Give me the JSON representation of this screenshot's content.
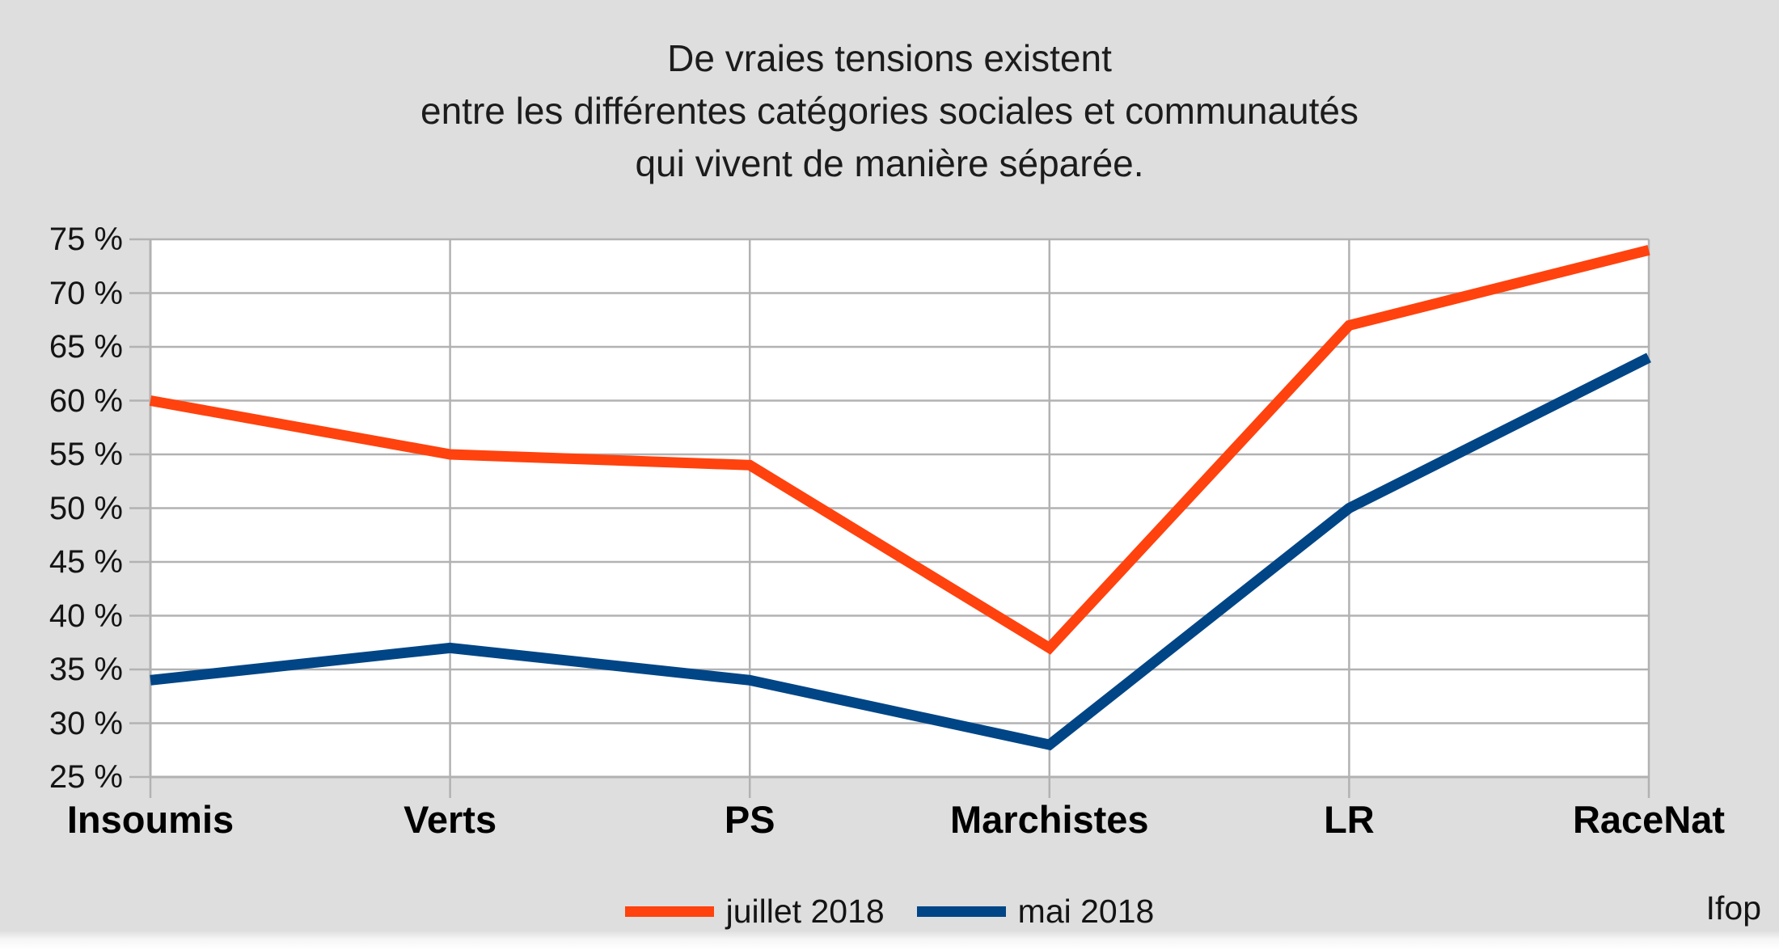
{
  "page": {
    "source_label": "Ifop"
  },
  "colors": {
    "background": "#dedede",
    "plot_background": "#ffffff",
    "gridline": "#b2b2b2",
    "text": "#141414"
  },
  "chart_data": {
    "type": "line",
    "title_lines": [
      "De vraies tensions existent",
      "entre les différentes catégories sociales et communautés",
      "qui vivent de manière séparée."
    ],
    "categories": [
      "Insoumis",
      "Verts",
      "PS",
      "Marchistes",
      "LR",
      "RaceNat"
    ],
    "series": [
      {
        "name": "juillet 2018",
        "color": "#ff420e",
        "values": [
          60,
          55,
          54,
          37,
          67,
          74
        ]
      },
      {
        "name": "mai 2018",
        "color": "#004586",
        "values": [
          34,
          37,
          34,
          28,
          50,
          64
        ]
      }
    ],
    "y_axis": {
      "min": 25,
      "max": 75,
      "step": 5,
      "tick_suffix": " %",
      "tick_labels": [
        "75 %",
        "70 %",
        "65 %",
        "60 %",
        "55 %",
        "50 %",
        "45 %",
        "40 %",
        "35 %",
        "30 %",
        "25 %"
      ]
    },
    "grid": true,
    "legend_position": "bottom",
    "line_width": 13
  }
}
